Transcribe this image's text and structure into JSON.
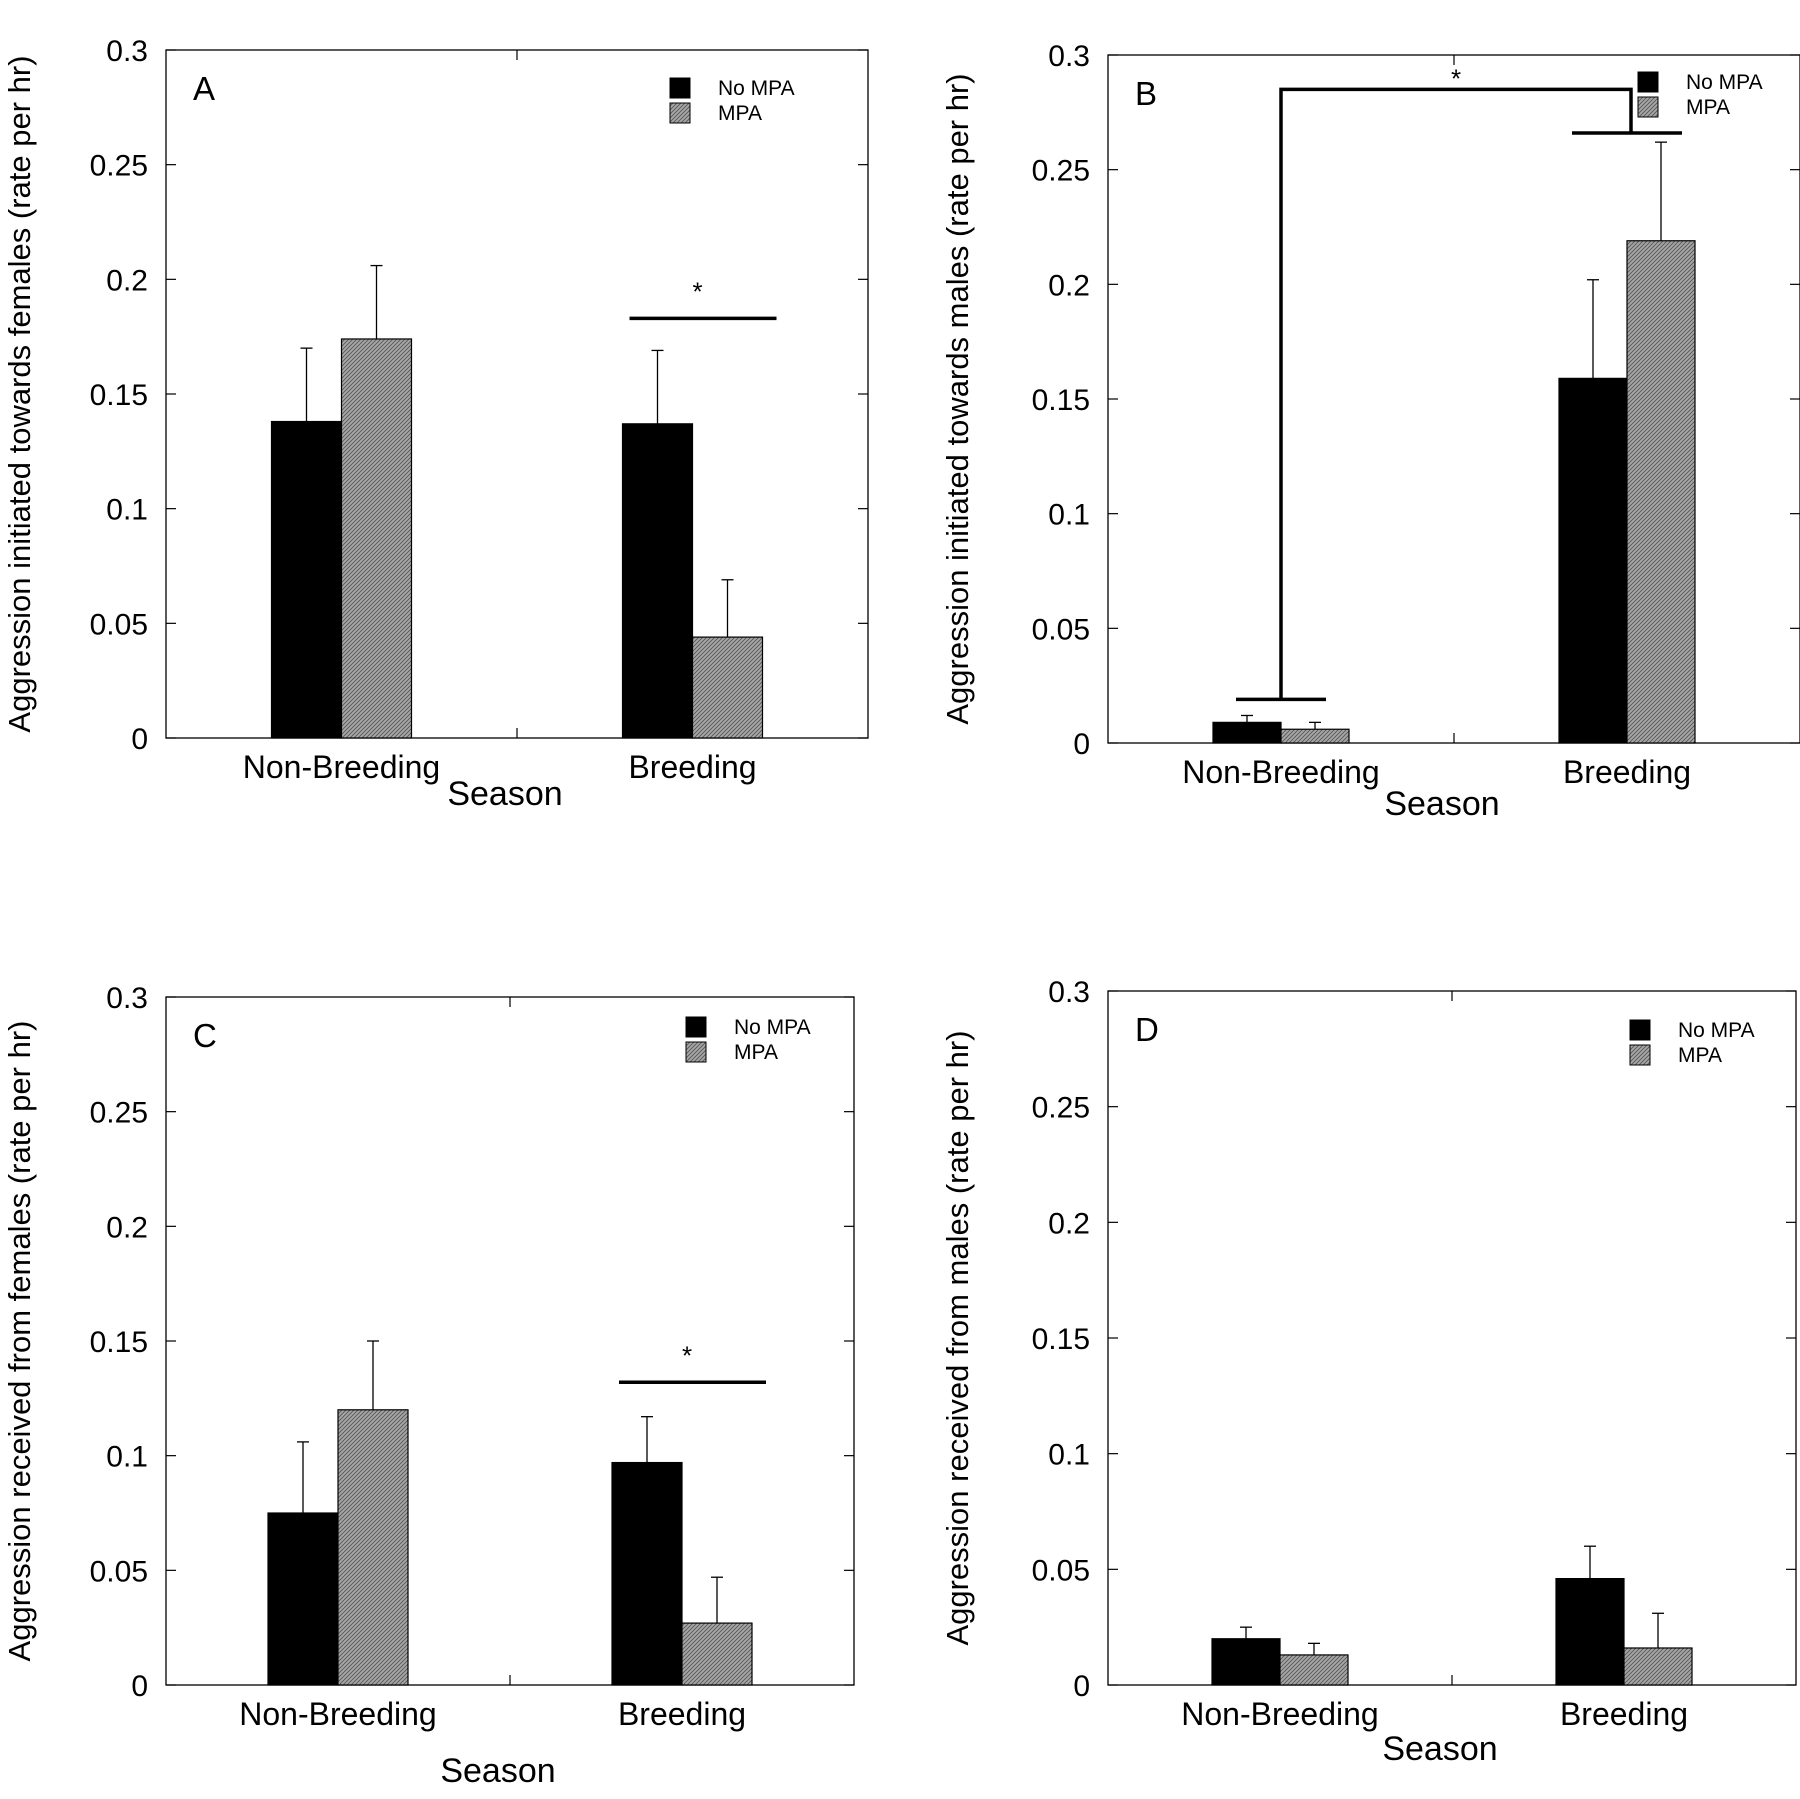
{
  "chart_data": [
    {
      "type": "bar",
      "panel_label": "A",
      "categories": [
        "Non-Breeding",
        "Breeding"
      ],
      "series": [
        {
          "name": "No MPA",
          "values": [
            0.138,
            0.137
          ],
          "errors": [
            0.032,
            0.032
          ]
        },
        {
          "name": "MPA",
          "values": [
            0.174,
            0.044
          ],
          "errors": [
            0.032,
            0.025
          ]
        }
      ],
      "xlabel": "Season",
      "ylabel": "Aggression initiated towards females (rate per hr)",
      "ylim": [
        0,
        0.3
      ],
      "yticks": [
        "0",
        "0.05",
        "0.1",
        "0.15",
        "0.2",
        "0.25",
        "0.3"
      ],
      "legend": [
        "No MPA",
        "MPA"
      ],
      "legend_position": "top-right",
      "significance": [
        {
          "category": "Breeding",
          "label": "*",
          "type": "within-group",
          "at": 0.183
        }
      ]
    },
    {
      "type": "bar",
      "panel_label": "B",
      "categories": [
        "Non-Breeding",
        "Breeding"
      ],
      "series": [
        {
          "name": "No MPA",
          "values": [
            0.009,
            0.159
          ],
          "errors": [
            0.003,
            0.043
          ]
        },
        {
          "name": "MPA",
          "values": [
            0.006,
            0.219
          ],
          "errors": [
            0.003,
            0.043
          ]
        }
      ],
      "xlabel": "Season",
      "ylabel": "Aggression initiated towards males (rate per hr)",
      "ylim": [
        0,
        0.3
      ],
      "yticks": [
        "0",
        "0.05",
        "0.1",
        "0.15",
        "0.2",
        "0.25",
        "0.3"
      ],
      "legend": [
        "No MPA",
        "MPA"
      ],
      "legend_position": "top-right",
      "significance": [
        {
          "label": "*",
          "type": "between-groups",
          "from": "Non-Breeding",
          "to": "Breeding",
          "at": 0.285,
          "base_left": 0.019,
          "base_right": 0.266
        }
      ]
    },
    {
      "type": "bar",
      "panel_label": "C",
      "categories": [
        "Non-Breeding",
        "Breeding"
      ],
      "series": [
        {
          "name": "No MPA",
          "values": [
            0.075,
            0.097
          ],
          "errors": [
            0.031,
            0.02
          ]
        },
        {
          "name": "MPA",
          "values": [
            0.12,
            0.027
          ],
          "errors": [
            0.03,
            0.02
          ]
        }
      ],
      "xlabel": "Season",
      "ylabel": "Aggression received from females (rate per hr)",
      "ylim": [
        0,
        0.3
      ],
      "yticks": [
        "0",
        "0.05",
        "0.1",
        "0.15",
        "0.2",
        "0.25",
        "0.3"
      ],
      "legend": [
        "No MPA",
        "MPA"
      ],
      "legend_position": "top-right",
      "significance": [
        {
          "category": "Breeding",
          "label": "*",
          "type": "within-group",
          "at": 0.132
        }
      ]
    },
    {
      "type": "bar",
      "panel_label": "D",
      "categories": [
        "Non-Breeding",
        "Breeding"
      ],
      "series": [
        {
          "name": "No MPA",
          "values": [
            0.02,
            0.046
          ],
          "errors": [
            0.005,
            0.014
          ]
        },
        {
          "name": "MPA",
          "values": [
            0.013,
            0.016
          ],
          "errors": [
            0.005,
            0.015
          ]
        }
      ],
      "xlabel": "Season",
      "ylabel": "Aggression received from males (rate per hr)",
      "ylim": [
        0,
        0.3
      ],
      "yticks": [
        "0",
        "0.05",
        "0.1",
        "0.15",
        "0.2",
        "0.25",
        "0.3"
      ],
      "legend": [
        "No MPA",
        "MPA"
      ],
      "legend_position": "top-right",
      "significance": []
    }
  ],
  "colors": {
    "no_mpa": "#000000",
    "mpa": "#9a9a9a",
    "mpa_hatch": "#5f5f5f"
  }
}
